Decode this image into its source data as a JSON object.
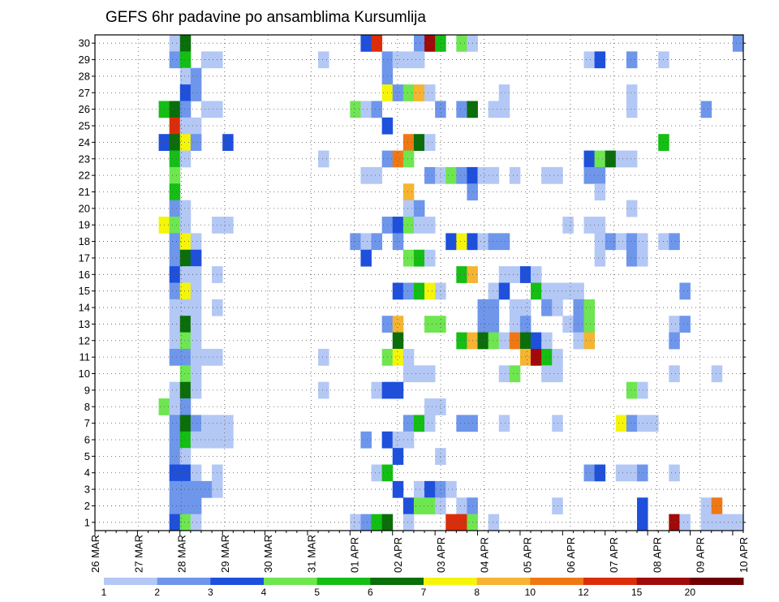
{
  "chart_data": {
    "type": "heatmap",
    "title": "GEFS 6hr padavine po ansamblima Kursumlija",
    "xlabel": "",
    "ylabel": "",
    "x_tick_labels": [
      "26 MAR",
      "27 MAR",
      "28 MAR",
      "29 MAR",
      "30 MAR",
      "31 MAR",
      "01 APR",
      "02 APR",
      "03 APR",
      "04 APR",
      "05 APR",
      "06 APR",
      "07 APR",
      "08 APR",
      "09 APR",
      "10 APR"
    ],
    "y_tick_labels": [
      "1",
      "2",
      "3",
      "4",
      "5",
      "6",
      "7",
      "8",
      "9",
      "10",
      "11",
      "12",
      "13",
      "14",
      "15",
      "16",
      "17",
      "18",
      "19",
      "20",
      "21",
      "22",
      "23",
      "24",
      "25",
      "26",
      "27",
      "28",
      "29",
      "30"
    ],
    "x_range_steps": [
      0,
      61
    ],
    "y_range": [
      0.5,
      30.5
    ],
    "grid": true,
    "colorbar": {
      "colors": [
        "#b4c8f5",
        "#6e96eb",
        "#1e50dc",
        "#6ee650",
        "#14be14",
        "#0a6e0a",
        "#f5f50a",
        "#f5b432",
        "#f07814",
        "#dc2d0a",
        "#a00a0a",
        "#6e0000"
      ],
      "labels": [
        "1",
        "2",
        "3",
        "4",
        "5",
        "6",
        "7",
        "8",
        "10",
        "12",
        "15",
        "20"
      ]
    },
    "cells": [
      [
        30,
        7,
        1
      ],
      [
        30,
        8,
        6
      ],
      [
        30,
        25,
        3
      ],
      [
        30,
        26,
        10
      ],
      [
        30,
        30,
        2
      ],
      [
        30,
        31,
        11
      ],
      [
        30,
        32,
        5
      ],
      [
        30,
        34,
        4
      ],
      [
        30,
        35,
        1
      ],
      [
        30,
        60,
        2
      ],
      [
        29,
        7,
        2
      ],
      [
        29,
        8,
        5
      ],
      [
        29,
        10,
        1
      ],
      [
        29,
        11,
        1
      ],
      [
        29,
        21,
        1
      ],
      [
        29,
        27,
        2
      ],
      [
        29,
        28,
        1
      ],
      [
        29,
        29,
        1
      ],
      [
        29,
        30,
        1
      ],
      [
        29,
        46,
        1
      ],
      [
        29,
        47,
        3
      ],
      [
        29,
        50,
        2
      ],
      [
        29,
        53,
        1
      ],
      [
        28,
        8,
        1
      ],
      [
        28,
        9,
        2
      ],
      [
        28,
        27,
        2
      ],
      [
        27,
        8,
        3
      ],
      [
        27,
        9,
        2
      ],
      [
        27,
        27,
        7
      ],
      [
        27,
        28,
        2
      ],
      [
        27,
        29,
        4
      ],
      [
        27,
        30,
        8
      ],
      [
        27,
        31,
        1
      ],
      [
        27,
        38,
        1
      ],
      [
        27,
        50,
        1
      ],
      [
        26,
        6,
        5
      ],
      [
        26,
        7,
        6
      ],
      [
        26,
        8,
        2
      ],
      [
        26,
        10,
        1
      ],
      [
        26,
        11,
        1
      ],
      [
        26,
        24,
        4
      ],
      [
        26,
        25,
        1
      ],
      [
        26,
        26,
        2
      ],
      [
        26,
        32,
        2
      ],
      [
        26,
        34,
        2
      ],
      [
        26,
        35,
        6
      ],
      [
        26,
        37,
        1
      ],
      [
        26,
        38,
        1
      ],
      [
        26,
        50,
        1
      ],
      [
        26,
        57,
        2
      ],
      [
        25,
        7,
        10
      ],
      [
        25,
        8,
        1
      ],
      [
        25,
        9,
        1
      ],
      [
        25,
        27,
        3
      ],
      [
        24,
        6,
        3
      ],
      [
        24,
        7,
        6
      ],
      [
        24,
        8,
        7
      ],
      [
        24,
        9,
        2
      ],
      [
        24,
        12,
        3
      ],
      [
        24,
        29,
        9
      ],
      [
        24,
        30,
        6
      ],
      [
        24,
        31,
        1
      ],
      [
        24,
        53,
        5
      ],
      [
        23,
        7,
        5
      ],
      [
        23,
        8,
        1
      ],
      [
        23,
        21,
        1
      ],
      [
        23,
        27,
        2
      ],
      [
        23,
        28,
        9
      ],
      [
        23,
        29,
        4
      ],
      [
        23,
        46,
        3
      ],
      [
        23,
        47,
        4
      ],
      [
        23,
        48,
        6
      ],
      [
        23,
        49,
        1
      ],
      [
        23,
        50,
        1
      ],
      [
        22,
        7,
        4
      ],
      [
        22,
        25,
        1
      ],
      [
        22,
        26,
        1
      ],
      [
        22,
        31,
        2
      ],
      [
        22,
        32,
        1
      ],
      [
        22,
        33,
        4
      ],
      [
        22,
        34,
        2
      ],
      [
        22,
        35,
        3
      ],
      [
        22,
        36,
        1
      ],
      [
        22,
        37,
        1
      ],
      [
        22,
        39,
        1
      ],
      [
        22,
        42,
        1
      ],
      [
        22,
        43,
        1
      ],
      [
        22,
        46,
        2
      ],
      [
        22,
        47,
        2
      ],
      [
        21,
        7,
        5
      ],
      [
        21,
        29,
        8
      ],
      [
        21,
        35,
        2
      ],
      [
        21,
        47,
        1
      ],
      [
        20,
        7,
        2
      ],
      [
        20,
        8,
        1
      ],
      [
        20,
        29,
        1
      ],
      [
        20,
        30,
        2
      ],
      [
        20,
        50,
        1
      ],
      [
        19,
        6,
        7
      ],
      [
        19,
        7,
        4
      ],
      [
        19,
        8,
        1
      ],
      [
        19,
        11,
        1
      ],
      [
        19,
        12,
        1
      ],
      [
        19,
        27,
        2
      ],
      [
        19,
        28,
        3
      ],
      [
        19,
        29,
        4
      ],
      [
        19,
        30,
        1
      ],
      [
        19,
        31,
        1
      ],
      [
        19,
        44,
        1
      ],
      [
        19,
        46,
        1
      ],
      [
        19,
        47,
        1
      ],
      [
        18,
        7,
        2
      ],
      [
        18,
        8,
        7
      ],
      [
        18,
        9,
        1
      ],
      [
        18,
        24,
        2
      ],
      [
        18,
        25,
        1
      ],
      [
        18,
        26,
        2
      ],
      [
        18,
        28,
        2
      ],
      [
        18,
        33,
        3
      ],
      [
        18,
        34,
        7
      ],
      [
        18,
        35,
        3
      ],
      [
        18,
        36,
        1
      ],
      [
        18,
        37,
        2
      ],
      [
        18,
        38,
        2
      ],
      [
        18,
        47,
        1
      ],
      [
        18,
        48,
        2
      ],
      [
        18,
        49,
        1
      ],
      [
        18,
        50,
        2
      ],
      [
        18,
        51,
        1
      ],
      [
        18,
        53,
        1
      ],
      [
        18,
        54,
        2
      ],
      [
        17,
        7,
        2
      ],
      [
        17,
        8,
        6
      ],
      [
        17,
        9,
        3
      ],
      [
        17,
        25,
        3
      ],
      [
        17,
        29,
        4
      ],
      [
        17,
        30,
        5
      ],
      [
        17,
        31,
        1
      ],
      [
        17,
        47,
        1
      ],
      [
        17,
        50,
        2
      ],
      [
        17,
        51,
        1
      ],
      [
        16,
        7,
        3
      ],
      [
        16,
        8,
        1
      ],
      [
        16,
        9,
        1
      ],
      [
        16,
        11,
        1
      ],
      [
        16,
        34,
        5
      ],
      [
        16,
        35,
        8
      ],
      [
        16,
        38,
        1
      ],
      [
        16,
        39,
        1
      ],
      [
        16,
        40,
        3
      ],
      [
        16,
        41,
        1
      ],
      [
        15,
        7,
        2
      ],
      [
        15,
        8,
        7
      ],
      [
        15,
        9,
        1
      ],
      [
        15,
        28,
        3
      ],
      [
        15,
        29,
        2
      ],
      [
        15,
        30,
        5
      ],
      [
        15,
        31,
        7
      ],
      [
        15,
        32,
        1
      ],
      [
        15,
        37,
        1
      ],
      [
        15,
        38,
        3
      ],
      [
        15,
        41,
        5
      ],
      [
        15,
        42,
        1
      ],
      [
        15,
        43,
        1
      ],
      [
        15,
        44,
        1
      ],
      [
        15,
        45,
        1
      ],
      [
        15,
        55,
        2
      ],
      [
        14,
        7,
        1
      ],
      [
        14,
        8,
        1
      ],
      [
        14,
        9,
        1
      ],
      [
        14,
        11,
        1
      ],
      [
        14,
        36,
        2
      ],
      [
        14,
        37,
        2
      ],
      [
        14,
        39,
        1
      ],
      [
        14,
        40,
        1
      ],
      [
        14,
        42,
        2
      ],
      [
        14,
        43,
        1
      ],
      [
        14,
        45,
        2
      ],
      [
        14,
        46,
        4
      ],
      [
        13,
        7,
        1
      ],
      [
        13,
        8,
        6
      ],
      [
        13,
        9,
        1
      ],
      [
        13,
        27,
        2
      ],
      [
        13,
        28,
        8
      ],
      [
        13,
        31,
        4
      ],
      [
        13,
        32,
        4
      ],
      [
        13,
        36,
        2
      ],
      [
        13,
        37,
        2
      ],
      [
        13,
        39,
        1
      ],
      [
        13,
        40,
        2
      ],
      [
        13,
        44,
        1
      ],
      [
        13,
        45,
        2
      ],
      [
        13,
        46,
        4
      ],
      [
        13,
        54,
        1
      ],
      [
        13,
        55,
        2
      ],
      [
        12,
        7,
        1
      ],
      [
        12,
        8,
        4
      ],
      [
        12,
        9,
        1
      ],
      [
        12,
        28,
        6
      ],
      [
        12,
        34,
        5
      ],
      [
        12,
        35,
        8
      ],
      [
        12,
        36,
        6
      ],
      [
        12,
        37,
        4
      ],
      [
        12,
        38,
        1
      ],
      [
        12,
        39,
        9
      ],
      [
        12,
        40,
        6
      ],
      [
        12,
        41,
        3
      ],
      [
        12,
        42,
        1
      ],
      [
        12,
        45,
        1
      ],
      [
        12,
        46,
        8
      ],
      [
        12,
        54,
        2
      ],
      [
        11,
        7,
        2
      ],
      [
        11,
        8,
        2
      ],
      [
        11,
        9,
        1
      ],
      [
        11,
        10,
        1
      ],
      [
        11,
        11,
        1
      ],
      [
        11,
        21,
        1
      ],
      [
        11,
        27,
        4
      ],
      [
        11,
        28,
        7
      ],
      [
        11,
        29,
        1
      ],
      [
        11,
        40,
        8
      ],
      [
        11,
        41,
        11
      ],
      [
        11,
        42,
        5
      ],
      [
        11,
        43,
        1
      ],
      [
        10,
        8,
        4
      ],
      [
        10,
        9,
        1
      ],
      [
        10,
        29,
        1
      ],
      [
        10,
        30,
        1
      ],
      [
        10,
        31,
        1
      ],
      [
        10,
        38,
        1
      ],
      [
        10,
        39,
        4
      ],
      [
        10,
        42,
        1
      ],
      [
        10,
        43,
        1
      ],
      [
        10,
        54,
        1
      ],
      [
        10,
        58,
        1
      ],
      [
        9,
        7,
        1
      ],
      [
        9,
        8,
        6
      ],
      [
        9,
        9,
        1
      ],
      [
        9,
        21,
        1
      ],
      [
        9,
        26,
        1
      ],
      [
        9,
        27,
        3
      ],
      [
        9,
        28,
        3
      ],
      [
        9,
        50,
        4
      ],
      [
        9,
        51,
        1
      ],
      [
        8,
        6,
        4
      ],
      [
        8,
        7,
        1
      ],
      [
        8,
        8,
        2
      ],
      [
        8,
        31,
        1
      ],
      [
        8,
        32,
        1
      ],
      [
        7,
        7,
        2
      ],
      [
        7,
        8,
        6
      ],
      [
        7,
        9,
        2
      ],
      [
        7,
        10,
        1
      ],
      [
        7,
        11,
        1
      ],
      [
        7,
        12,
        1
      ],
      [
        7,
        29,
        2
      ],
      [
        7,
        30,
        5
      ],
      [
        7,
        31,
        1
      ],
      [
        7,
        34,
        2
      ],
      [
        7,
        35,
        2
      ],
      [
        7,
        38,
        1
      ],
      [
        7,
        43,
        1
      ],
      [
        7,
        49,
        7
      ],
      [
        7,
        50,
        2
      ],
      [
        7,
        51,
        1
      ],
      [
        7,
        52,
        1
      ],
      [
        6,
        7,
        2
      ],
      [
        6,
        8,
        5
      ],
      [
        6,
        9,
        1
      ],
      [
        6,
        10,
        1
      ],
      [
        6,
        11,
        1
      ],
      [
        6,
        12,
        1
      ],
      [
        6,
        25,
        2
      ],
      [
        6,
        27,
        3
      ],
      [
        6,
        28,
        1
      ],
      [
        6,
        29,
        1
      ],
      [
        5,
        7,
        2
      ],
      [
        5,
        8,
        1
      ],
      [
        5,
        28,
        3
      ],
      [
        5,
        32,
        1
      ],
      [
        4,
        7,
        3
      ],
      [
        4,
        8,
        3
      ],
      [
        4,
        9,
        1
      ],
      [
        4,
        11,
        1
      ],
      [
        4,
        26,
        1
      ],
      [
        4,
        27,
        5
      ],
      [
        4,
        46,
        2
      ],
      [
        4,
        47,
        3
      ],
      [
        4,
        49,
        1
      ],
      [
        4,
        50,
        1
      ],
      [
        4,
        51,
        2
      ],
      [
        4,
        54,
        1
      ],
      [
        3,
        7,
        2
      ],
      [
        3,
        8,
        2
      ],
      [
        3,
        9,
        2
      ],
      [
        3,
        10,
        2
      ],
      [
        3,
        11,
        1
      ],
      [
        3,
        28,
        3
      ],
      [
        3,
        30,
        1
      ],
      [
        3,
        31,
        3
      ],
      [
        3,
        32,
        2
      ],
      [
        3,
        33,
        1
      ],
      [
        2,
        7,
        2
      ],
      [
        2,
        8,
        2
      ],
      [
        2,
        9,
        2
      ],
      [
        2,
        29,
        3
      ],
      [
        2,
        30,
        4
      ],
      [
        2,
        31,
        4
      ],
      [
        2,
        32,
        1
      ],
      [
        2,
        34,
        1
      ],
      [
        2,
        35,
        2
      ],
      [
        2,
        43,
        1
      ],
      [
        2,
        51,
        3
      ],
      [
        2,
        57,
        1
      ],
      [
        2,
        58,
        9
      ],
      [
        1,
        7,
        3
      ],
      [
        1,
        8,
        4
      ],
      [
        1,
        9,
        1
      ],
      [
        1,
        24,
        1
      ],
      [
        1,
        25,
        2
      ],
      [
        1,
        26,
        5
      ],
      [
        1,
        27,
        6
      ],
      [
        1,
        29,
        1
      ],
      [
        1,
        33,
        10
      ],
      [
        1,
        34,
        10
      ],
      [
        1,
        35,
        4
      ],
      [
        1,
        37,
        1
      ],
      [
        1,
        51,
        3
      ],
      [
        1,
        54,
        11
      ],
      [
        1,
        55,
        1
      ],
      [
        1,
        57,
        1
      ],
      [
        1,
        58,
        1
      ],
      [
        1,
        59,
        1
      ],
      [
        1,
        60,
        1
      ]
    ]
  }
}
